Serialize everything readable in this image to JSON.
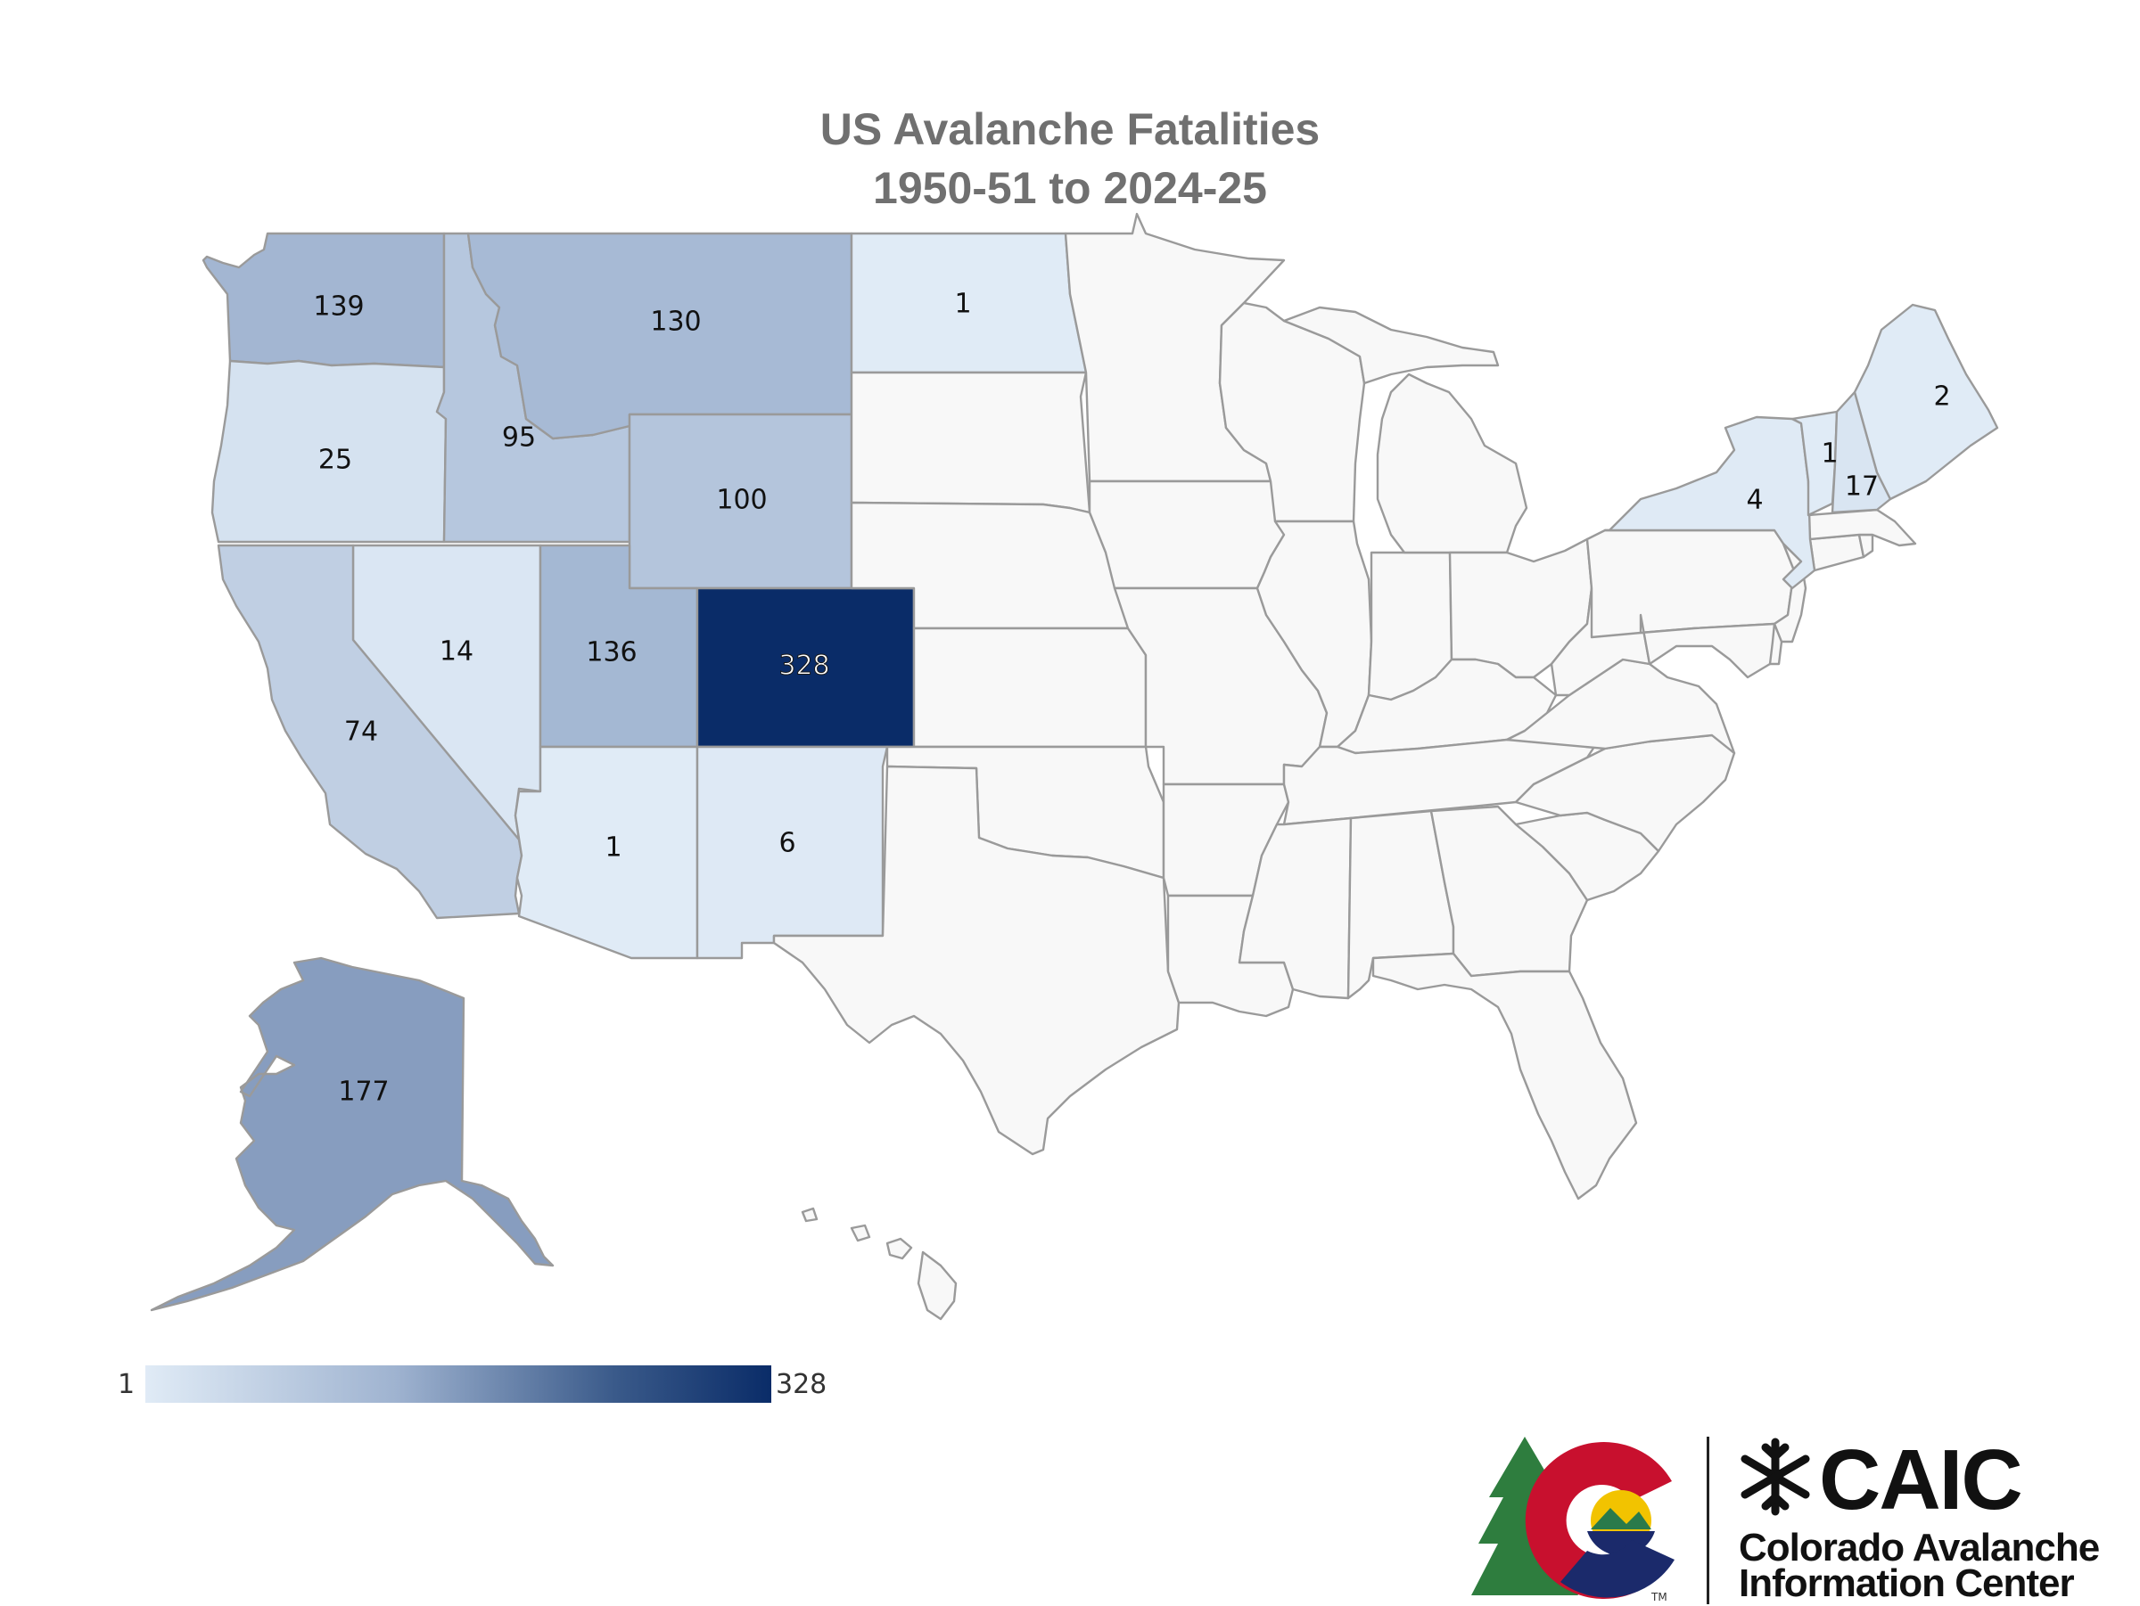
{
  "title": {
    "line1": "US Avalanche Fatalities",
    "line2": "1950-51 to 2024-25"
  },
  "legend": {
    "min": "1",
    "max": "328",
    "color_min": "#e0ebf6",
    "color_max": "#0a2c68"
  },
  "no_data_color": "#f8f8f8",
  "state_values": {
    "WA": 139,
    "MT": 130,
    "ND": 1,
    "OR": 25,
    "ID": 95,
    "WY": 100,
    "NV": 14,
    "UT": 136,
    "CO": 328,
    "CA": 74,
    "AZ": 1,
    "NM": 6,
    "AK": 177,
    "NY": 4,
    "VT": 1,
    "NH": 17,
    "ME": 2
  },
  "labels": {
    "WA": "139",
    "MT": "130",
    "ND": "1",
    "OR": "25",
    "ID": "95",
    "WY": "100",
    "NV": "14",
    "UT": "136",
    "CO": "328",
    "CA": "74",
    "AZ": "1",
    "NM": "6",
    "AK": "177",
    "NY": "4",
    "VT": "1",
    "NH": "17",
    "ME": "2"
  },
  "logo": {
    "acronym": "CAIC",
    "name_line1": "Colorado Avalanche",
    "name_line2": "Information Center",
    "icon": "snowflake-icon"
  }
}
